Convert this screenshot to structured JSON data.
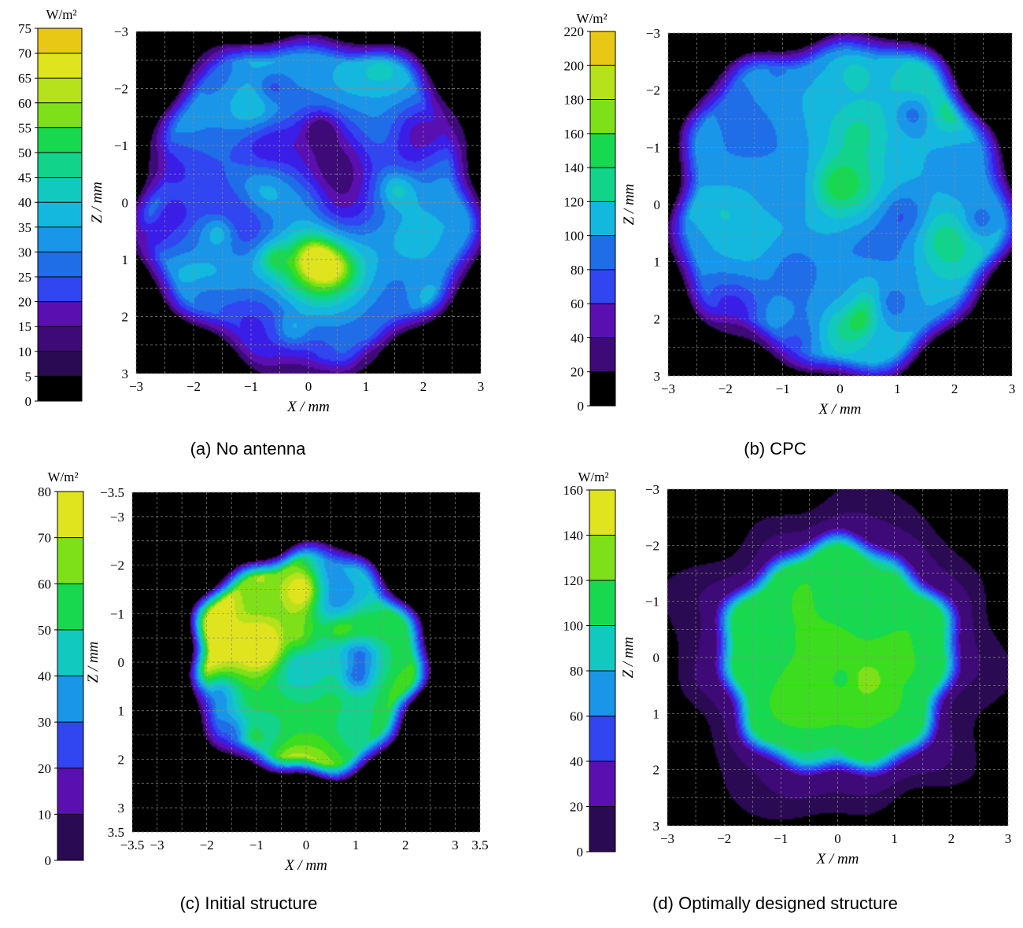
{
  "chart_data": [
    {
      "type": "heatmap",
      "panel_caption": "(a)  No antenna",
      "xlabel": "X / mm",
      "ylabel": "Z / mm",
      "colorbar_unit": "W/m²",
      "colorbar_ticks": [
        "0",
        "5",
        "10",
        "15",
        "20",
        "25",
        "30",
        "35",
        "40",
        "45",
        "50",
        "55",
        "60",
        "65",
        "70",
        "75"
      ],
      "colorbar_range": [
        0,
        75
      ],
      "x_ticks": [
        "−3",
        "−2",
        "−1",
        "0",
        "1",
        "2",
        "3"
      ],
      "y_ticks": [
        "−3",
        "−2",
        "−1",
        "0",
        "1",
        "2",
        "3"
      ],
      "xlim": [
        -3,
        3
      ],
      "ylim": [
        -3,
        3
      ],
      "grid": true,
      "pattern": "speckled",
      "spot_radius_mm": 3.0,
      "mean_level": 28,
      "peak_level": 68
    },
    {
      "type": "heatmap",
      "panel_caption": "(b) CPC",
      "xlabel": "X / mm",
      "ylabel": "Z / mm",
      "colorbar_unit": "W/m²",
      "colorbar_ticks": [
        "0",
        "20",
        "40",
        "60",
        "80",
        "100",
        "120",
        "140",
        "160",
        "180",
        "200",
        "220"
      ],
      "colorbar_range": [
        0,
        220
      ],
      "x_ticks": [
        "−3",
        "−2",
        "−1",
        "0",
        "1",
        "2",
        "3"
      ],
      "y_ticks": [
        "−3",
        "−2",
        "−1",
        "0",
        "1",
        "2",
        "3"
      ],
      "xlim": [
        -3,
        3
      ],
      "ylim": [
        -3,
        3
      ],
      "grid": true,
      "pattern": "mottled",
      "spot_radius_mm": 3.0,
      "mean_level": 105,
      "peak_level": 175
    },
    {
      "type": "heatmap",
      "panel_caption": "(c) Initial structure",
      "xlabel": "X / mm",
      "ylabel": "Z / mm",
      "colorbar_unit": "W/m²",
      "colorbar_ticks": [
        "0",
        "10",
        "20",
        "30",
        "40",
        "50",
        "60",
        "70",
        "80"
      ],
      "colorbar_range": [
        0,
        80
      ],
      "x_ticks": [
        "−3.5",
        "−3",
        "−2",
        "−1",
        "0",
        "1",
        "2",
        "3",
        "3.5"
      ],
      "y_ticks": [
        "−3.5",
        "−3",
        "−2",
        "−1",
        "0",
        "1",
        "2",
        "3",
        "3.5"
      ],
      "xlim": [
        -3.5,
        3.5
      ],
      "ylim": [
        -3.5,
        3.5
      ],
      "grid": true,
      "pattern": "mottled",
      "spot_radius_mm": 2.4,
      "mean_level": 55,
      "peak_level": 72
    },
    {
      "type": "heatmap",
      "panel_caption": "(d) Optimally designed structure",
      "xlabel": "X / mm",
      "ylabel": "Z / mm",
      "colorbar_unit": "W/m²",
      "colorbar_ticks": [
        "0",
        "20",
        "40",
        "60",
        "80",
        "100",
        "120",
        "140",
        "160"
      ],
      "colorbar_range": [
        0,
        160
      ],
      "x_ticks": [
        "−3",
        "−2",
        "−1",
        "0",
        "1",
        "2",
        "3"
      ],
      "y_ticks": [
        "−3",
        "−2",
        "−1",
        "0",
        "1",
        "2",
        "3"
      ],
      "xlim": [
        -3,
        3
      ],
      "ylim": [
        -3,
        3
      ],
      "grid": true,
      "pattern": "smooth",
      "spot_radius_mm": 2.2,
      "mean_level": 120,
      "peak_level": 150
    }
  ],
  "palette": [
    "#000000",
    "#2a0a52",
    "#3d0a78",
    "#5a0fb0",
    "#3a1ee8",
    "#3145f0",
    "#1f6ee8",
    "#1a96e8",
    "#14b8de",
    "#12c9c0",
    "#11d48a",
    "#18d850",
    "#3cdd1e",
    "#7ee018",
    "#b6e21c",
    "#dfe41e",
    "#e8c814"
  ]
}
